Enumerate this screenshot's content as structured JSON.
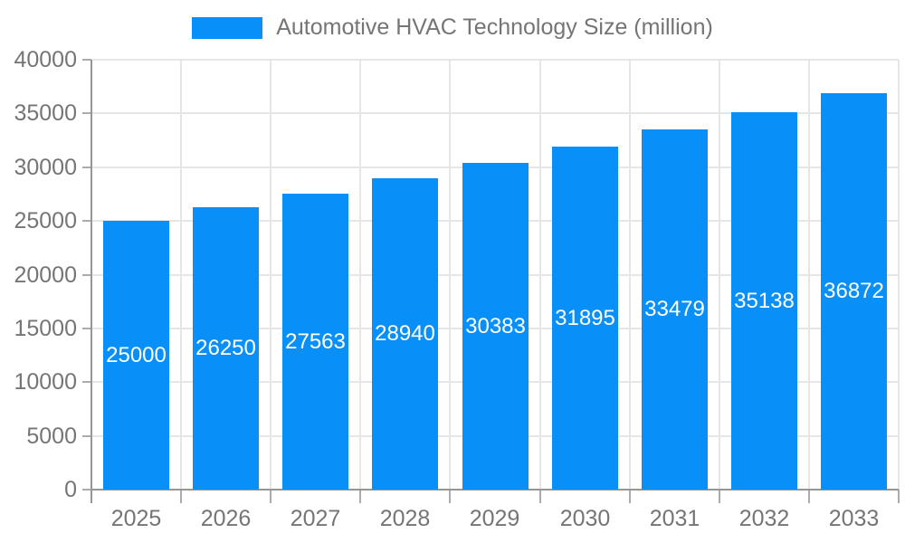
{
  "chart_data": {
    "type": "bar",
    "title": "Automotive HVAC Technology Size (million)",
    "legend_position": "top",
    "grid": true,
    "categories": [
      "2025",
      "2026",
      "2027",
      "2028",
      "2029",
      "2030",
      "2031",
      "2032",
      "2033"
    ],
    "series": [
      {
        "name": "Automotive HVAC Technology Size (million)",
        "values": [
          25000,
          26250,
          27563,
          28940,
          30383,
          31895,
          33479,
          35138,
          36872
        ]
      }
    ],
    "xlabel": "",
    "ylabel": "",
    "ylim": [
      0,
      40000
    ],
    "ytick_step": 5000,
    "yticks": [
      0,
      5000,
      10000,
      15000,
      20000,
      25000,
      30000,
      35000,
      40000
    ],
    "value_labels": {
      "visible": true,
      "placement": "inside-center",
      "color": "#ffffff"
    },
    "colors": {
      "bar": "#0890f8",
      "grid": "#e6e6e6",
      "axis": "#969696",
      "tick": "#ababab",
      "tick_text": "#757575",
      "legend_text": "#757575",
      "value_label_text": "#ffffff",
      "background": "#ffffff"
    }
  }
}
